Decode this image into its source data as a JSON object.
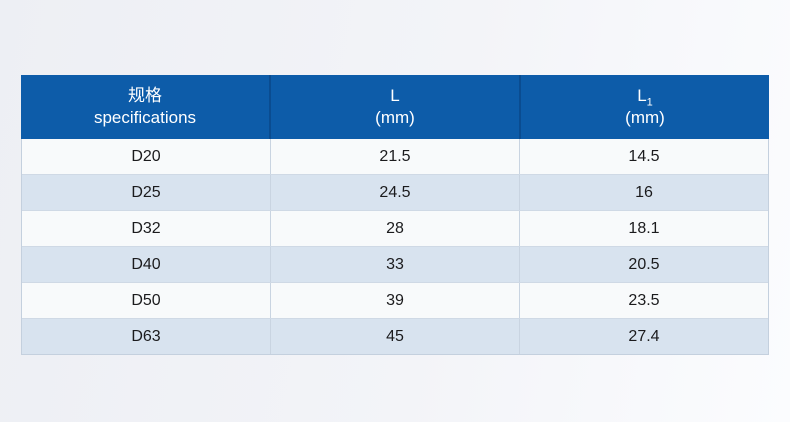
{
  "chart_data": {
    "type": "table",
    "columns": [
      "规格 specifications",
      "L (mm)",
      "L1 (mm)"
    ],
    "rows": [
      [
        "D20",
        "21.5",
        "14.5"
      ],
      [
        "D25",
        "24.5",
        "16"
      ],
      [
        "D32",
        "28",
        "18.1"
      ],
      [
        "D40",
        "33",
        "20.5"
      ],
      [
        "D50",
        "39",
        "23.5"
      ],
      [
        "D63",
        "45",
        "27.4"
      ]
    ],
    "layout": {
      "header_position": "top",
      "zebra_striping": true,
      "grid": true
    }
  },
  "colors": {
    "header_bg": "#0d5ca9",
    "header_divider": "#0a4c90",
    "header_text": "#ffffff",
    "row_white": "#f8fafb",
    "row_blue": "#d8e3ef",
    "grid_line": "#c9d4e1",
    "body_text": "#1b1b1d",
    "page_bg_left": "#edeff4",
    "page_bg_right": "#fbfcfe"
  },
  "table": {
    "header": {
      "col1": {
        "line1": "规格",
        "line2": "specifications"
      },
      "col2": {
        "line1": "L",
        "line2": "(mm)"
      },
      "col3": {
        "line1": "L",
        "sub": "1",
        "line2": "(mm)"
      }
    },
    "rows": [
      {
        "spec": "D20",
        "l": "21.5",
        "l1": "14.5"
      },
      {
        "spec": "D25",
        "l": "24.5",
        "l1": "16"
      },
      {
        "spec": "D32",
        "l": "28",
        "l1": "18.1"
      },
      {
        "spec": "D40",
        "l": "33",
        "l1": "20.5"
      },
      {
        "spec": "D50",
        "l": "39",
        "l1": "23.5"
      },
      {
        "spec": "D63",
        "l": "45",
        "l1": "27.4"
      }
    ]
  }
}
